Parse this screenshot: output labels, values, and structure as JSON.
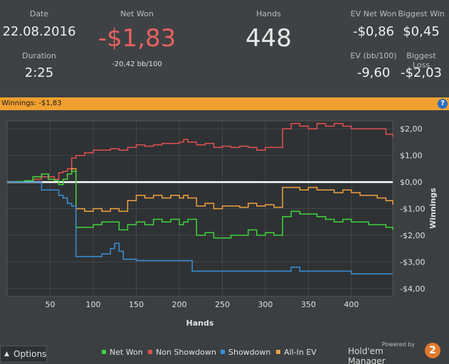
{
  "stats": {
    "date_label": "Date",
    "date_value": "22.08.2016",
    "duration_label": "Duration",
    "duration_value": "2:25",
    "net_won_label": "Net Won",
    "net_won_value": "-$1,83",
    "net_won_bb": "-20,42 bb/100",
    "hands_label": "Hands",
    "hands_value": "448",
    "ev_net_won_label": "EV Net Won",
    "ev_net_won_value": "-$0,86",
    "biggest_win_label": "Biggest Win",
    "biggest_win_value": "$0,45",
    "ev_bb_label": "EV (bb/100)",
    "ev_bb_value": "-9,60",
    "biggest_loss_label": "Biggest Loss",
    "biggest_loss_value": "-$2,03"
  },
  "banner": {
    "text": "Winnings:  -$1,83",
    "help_icon": "?"
  },
  "footer": {
    "options_label": "Options",
    "legend": [
      {
        "label": "Net Won",
        "color": "#3cd43c"
      },
      {
        "label": "Non Showdown",
        "color": "#e05050"
      },
      {
        "label": "Showdown",
        "color": "#3a8fd8"
      },
      {
        "label": "All-In EV",
        "color": "#f0a040"
      }
    ],
    "powered_by": "Powered by",
    "brand": "Hold'em Manager",
    "brand_logo": "2"
  },
  "colors": {
    "net_won_value": "#e86060",
    "accent": "#f0a030"
  },
  "chart_data": {
    "type": "line",
    "title": "",
    "xlabel": "Hands",
    "ylabel": "Winnings",
    "xlim": [
      0,
      448
    ],
    "ylim": [
      -4.3,
      2.3
    ],
    "xticks": [
      50,
      100,
      150,
      200,
      250,
      300,
      350,
      400
    ],
    "xtick_labels": [
      "50",
      "100",
      "150",
      "200",
      "250",
      "300",
      "350",
      "400"
    ],
    "yticks": [
      2,
      1,
      0,
      -1,
      -2,
      -3,
      -4
    ],
    "ytick_labels": [
      "$2,00",
      "$1,00",
      "$0,00",
      "-$1,00",
      "-$2,00",
      "-$3,00",
      "-$4,00"
    ],
    "grid": true,
    "series": [
      {
        "name": "Non Showdown",
        "color": "#e05050",
        "x": [
          0,
          10,
          20,
          30,
          40,
          48,
          55,
          60,
          65,
          70,
          75,
          80,
          90,
          100,
          110,
          120,
          130,
          140,
          150,
          160,
          170,
          180,
          190,
          200,
          205,
          210,
          220,
          230,
          240,
          250,
          260,
          270,
          280,
          290,
          300,
          310,
          320,
          330,
          340,
          350,
          360,
          370,
          380,
          390,
          400,
          410,
          420,
          430,
          440,
          448
        ],
        "y": [
          0,
          0.02,
          0.05,
          0.1,
          0.2,
          0.2,
          0.1,
          0.35,
          0.4,
          0.5,
          0.9,
          1.0,
          1.1,
          1.2,
          1.2,
          1.25,
          1.2,
          1.3,
          1.4,
          1.35,
          1.4,
          1.45,
          1.45,
          1.5,
          1.6,
          1.5,
          1.4,
          1.45,
          1.3,
          1.35,
          1.3,
          1.35,
          1.3,
          1.2,
          1.3,
          1.3,
          2.0,
          2.2,
          2.1,
          2.0,
          2.2,
          2.1,
          2.2,
          2.1,
          2.0,
          2.0,
          2.0,
          2.0,
          1.8,
          1.7
        ]
      },
      {
        "name": "All-In EV",
        "color": "#f0a040",
        "x": [
          0,
          10,
          20,
          30,
          40,
          48,
          55,
          60,
          65,
          70,
          75,
          80,
          90,
          100,
          110,
          120,
          130,
          140,
          150,
          160,
          170,
          180,
          190,
          200,
          205,
          210,
          220,
          230,
          240,
          250,
          260,
          270,
          280,
          290,
          300,
          310,
          320,
          330,
          340,
          350,
          360,
          370,
          380,
          390,
          400,
          410,
          420,
          430,
          440,
          448
        ],
        "y": [
          0,
          0.02,
          0.05,
          0.2,
          0.3,
          0.1,
          0.05,
          -0.1,
          0.1,
          0.3,
          0.5,
          -1.0,
          -1.1,
          -1.0,
          -1.1,
          -1.0,
          -1.1,
          -0.7,
          -0.5,
          -0.6,
          -0.5,
          -0.6,
          -0.5,
          -0.6,
          -0.5,
          -0.6,
          -0.9,
          -0.8,
          -1.0,
          -0.9,
          -0.9,
          -0.95,
          -0.8,
          -0.9,
          -0.85,
          -0.95,
          -0.2,
          -0.2,
          -0.3,
          -0.2,
          -0.3,
          -0.3,
          -0.4,
          -0.3,
          -0.4,
          -0.5,
          -0.5,
          -0.6,
          -0.7,
          -0.85
        ]
      },
      {
        "name": "Net Won",
        "color": "#3cd43c",
        "x": [
          0,
          10,
          20,
          30,
          40,
          48,
          55,
          60,
          65,
          70,
          75,
          80,
          90,
          100,
          110,
          120,
          130,
          140,
          150,
          160,
          170,
          180,
          190,
          200,
          205,
          210,
          220,
          230,
          240,
          250,
          260,
          270,
          280,
          290,
          300,
          310,
          320,
          330,
          340,
          350,
          360,
          370,
          380,
          390,
          400,
          410,
          420,
          430,
          440,
          448
        ],
        "y": [
          0,
          0.02,
          0.05,
          0.2,
          0.3,
          0.1,
          0.05,
          -0.1,
          0.1,
          0.3,
          0.4,
          -1.7,
          -1.7,
          -1.6,
          -1.5,
          -1.5,
          -1.8,
          -1.6,
          -1.5,
          -1.6,
          -1.4,
          -1.5,
          -1.4,
          -1.6,
          -1.5,
          -1.4,
          -2.0,
          -1.9,
          -2.1,
          -2.1,
          -2.0,
          -2.0,
          -1.8,
          -2.0,
          -1.9,
          -2.0,
          -1.3,
          -1.1,
          -1.2,
          -1.2,
          -1.3,
          -1.4,
          -1.5,
          -1.4,
          -1.5,
          -1.5,
          -1.6,
          -1.6,
          -1.7,
          -1.8
        ]
      },
      {
        "name": "Showdown",
        "color": "#3a8fd8",
        "x": [
          0,
          10,
          20,
          30,
          40,
          48,
          55,
          60,
          65,
          70,
          75,
          80,
          90,
          100,
          110,
          120,
          125,
          130,
          135,
          140,
          150,
          160,
          170,
          180,
          190,
          200,
          210,
          215,
          220,
          230,
          240,
          250,
          260,
          270,
          280,
          290,
          300,
          310,
          320,
          330,
          340,
          350,
          360,
          370,
          380,
          390,
          400,
          410,
          420,
          430,
          440,
          448
        ],
        "y": [
          0,
          0,
          0,
          0,
          -0.3,
          -0.3,
          -0.3,
          -0.5,
          -0.6,
          -0.8,
          -0.9,
          -2.8,
          -2.8,
          -2.8,
          -2.7,
          -2.5,
          -2.3,
          -2.6,
          -2.9,
          -2.9,
          -2.95,
          -2.95,
          -2.95,
          -2.95,
          -2.95,
          -2.95,
          -2.95,
          -3.35,
          -3.35,
          -3.35,
          -3.35,
          -3.35,
          -3.35,
          -3.35,
          -3.35,
          -3.35,
          -3.35,
          -3.35,
          -3.35,
          -3.2,
          -3.35,
          -3.35,
          -3.35,
          -3.35,
          -3.35,
          -3.35,
          -3.45,
          -3.45,
          -3.45,
          -3.45,
          -3.45,
          -3.45
        ]
      }
    ]
  }
}
